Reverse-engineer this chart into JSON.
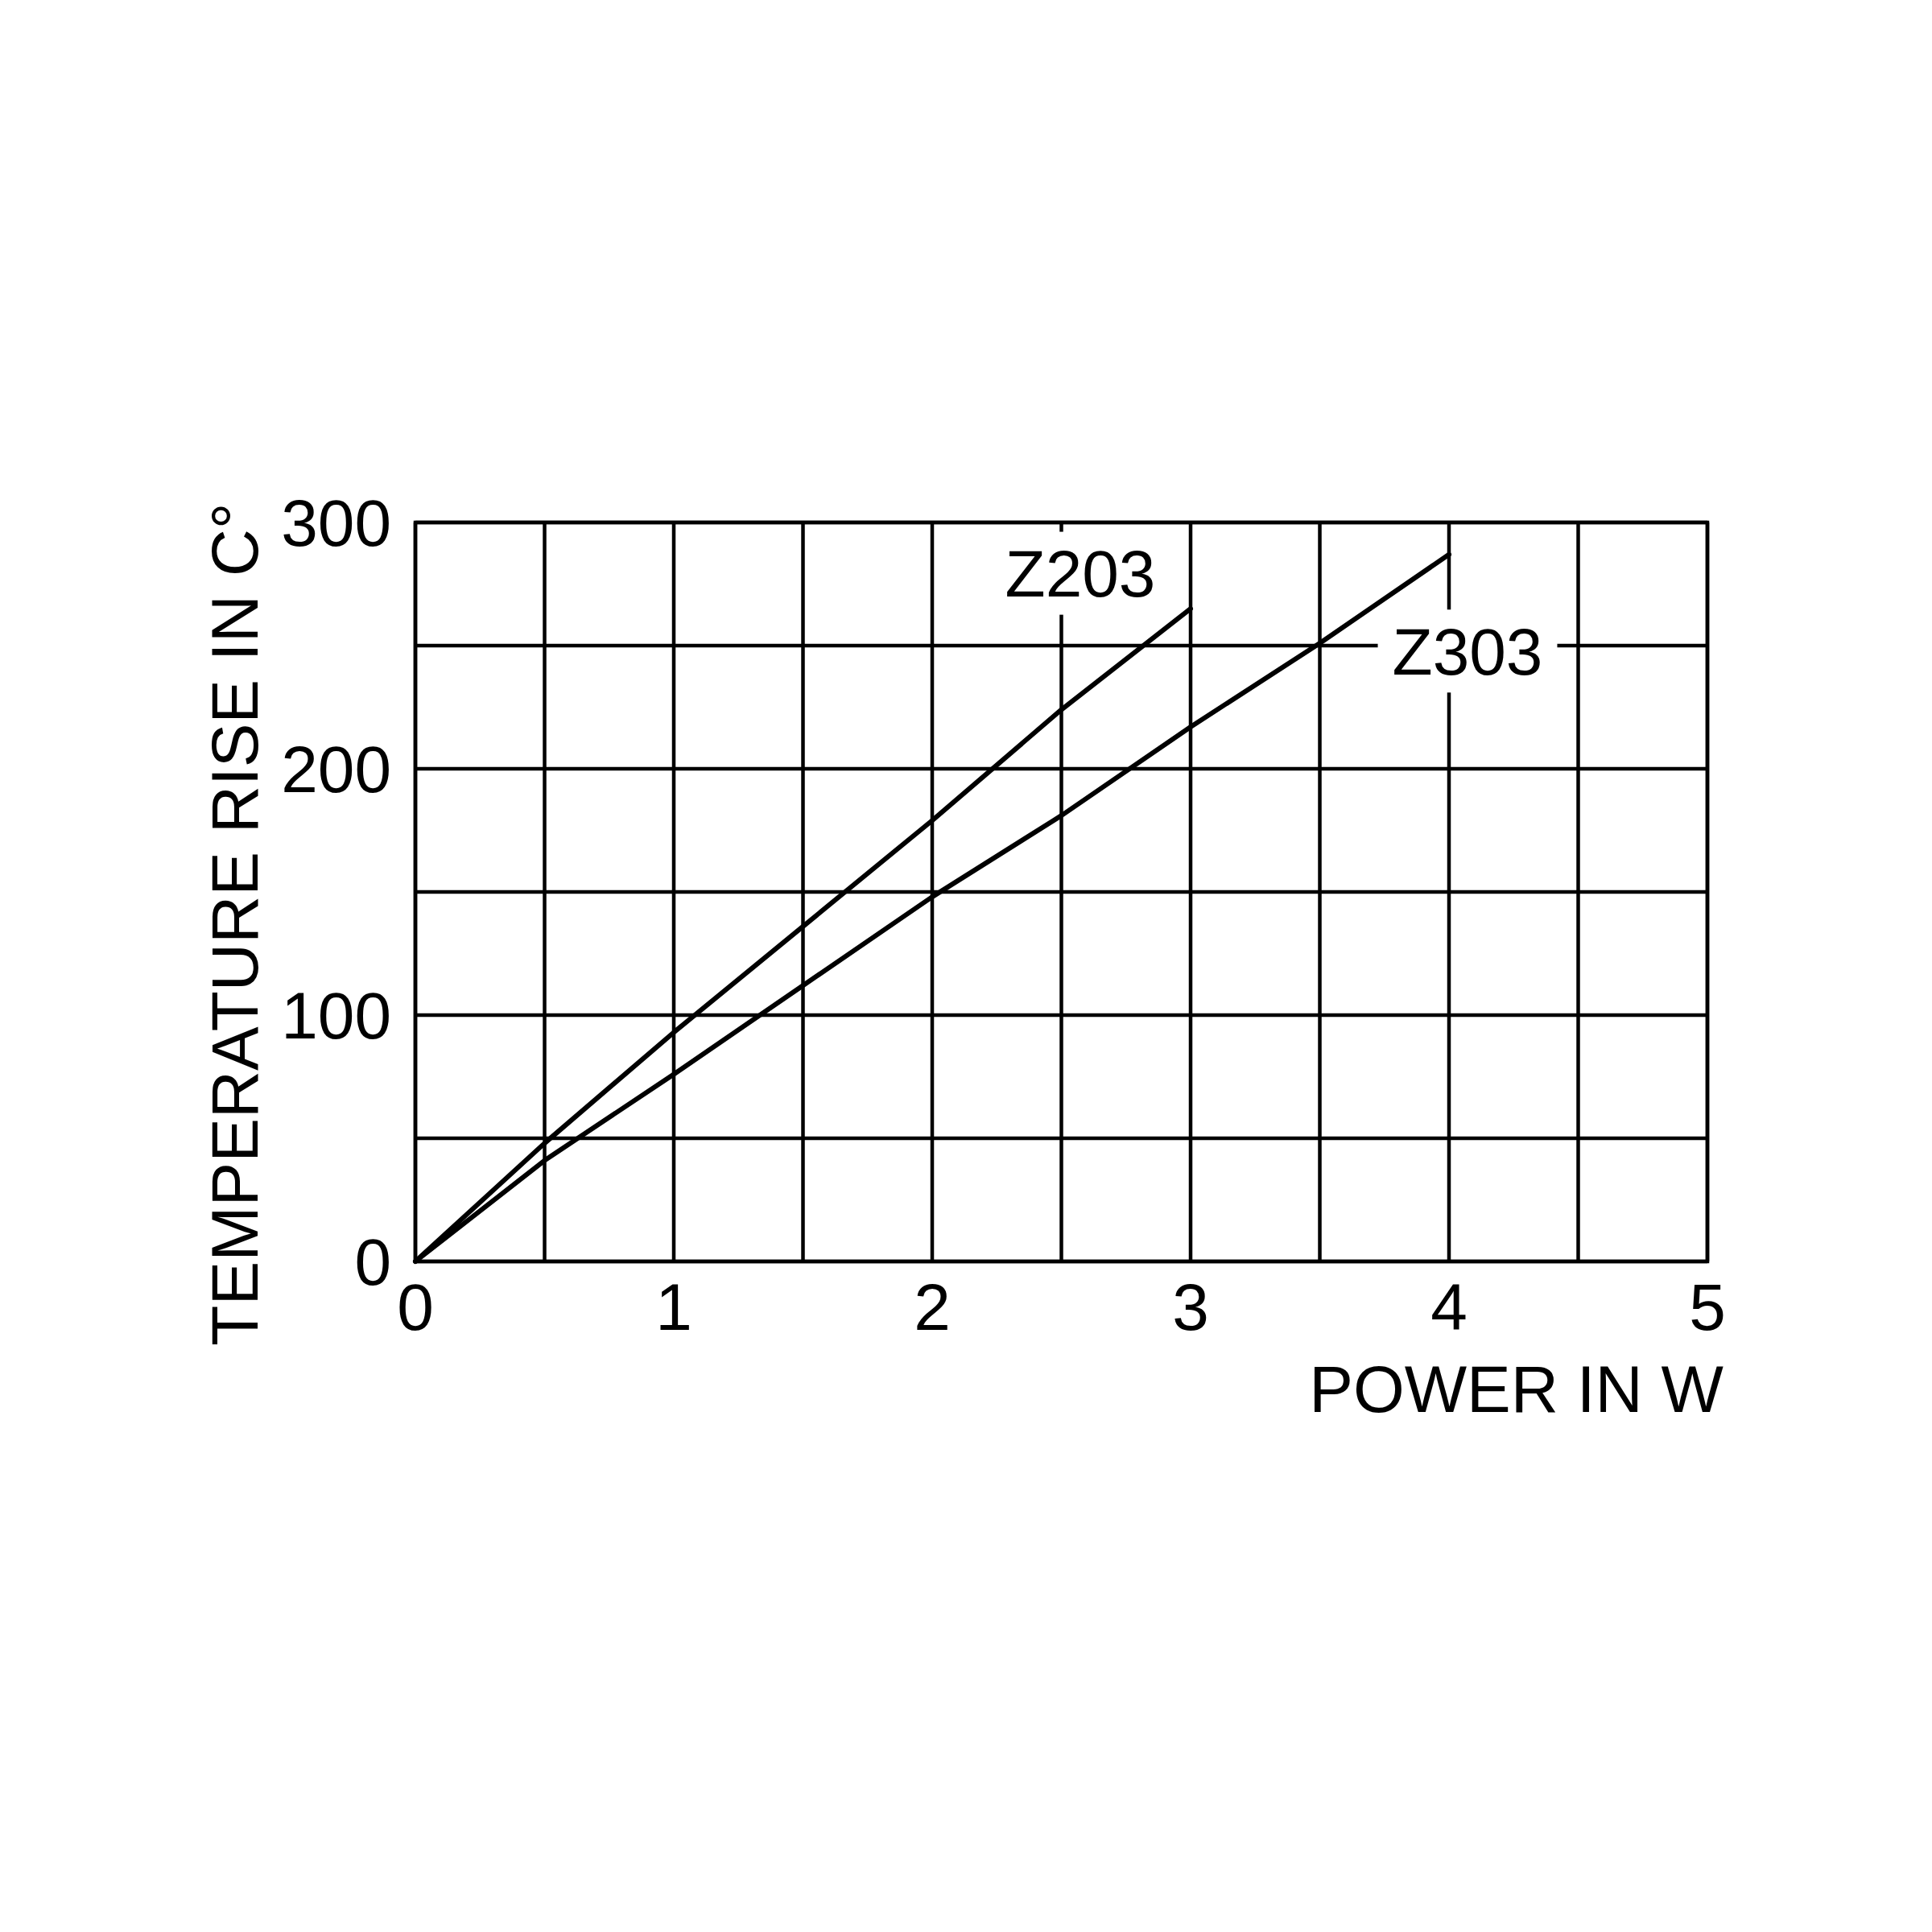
{
  "chart_data": {
    "type": "line",
    "xlabel": "POWER IN W",
    "ylabel": "TEMPERATURE RISE IN C°",
    "xlim": [
      0,
      5
    ],
    "ylim": [
      0,
      300
    ],
    "xticks": [
      0,
      {
        "value": 0.5,
        "label": null
      },
      1,
      {
        "value": 1.5,
        "label": null
      },
      2,
      {
        "value": 2.5,
        "label": null
      },
      3,
      {
        "value": 3.5,
        "label": null
      },
      4,
      {
        "value": 4.5,
        "label": null
      },
      5
    ],
    "yticks": [
      0,
      {
        "value": 50,
        "label": null
      },
      100,
      {
        "value": 150,
        "label": null
      },
      200,
      {
        "value": 250,
        "label": null
      },
      300
    ],
    "grid": true,
    "series": [
      {
        "name": "Z203",
        "color": "#000000",
        "x": [
          0,
          0.5,
          1,
          1.5,
          2,
          2.5,
          3
        ],
        "values": [
          0,
          48,
          93,
          136,
          179,
          224,
          265
        ]
      },
      {
        "name": "Z303",
        "color": "#000000",
        "x": [
          0,
          0.5,
          1,
          1.5,
          2,
          2.5,
          3,
          3.5,
          4
        ],
        "values": [
          0,
          41,
          76,
          112,
          148,
          181,
          217,
          251,
          287
        ]
      }
    ]
  }
}
